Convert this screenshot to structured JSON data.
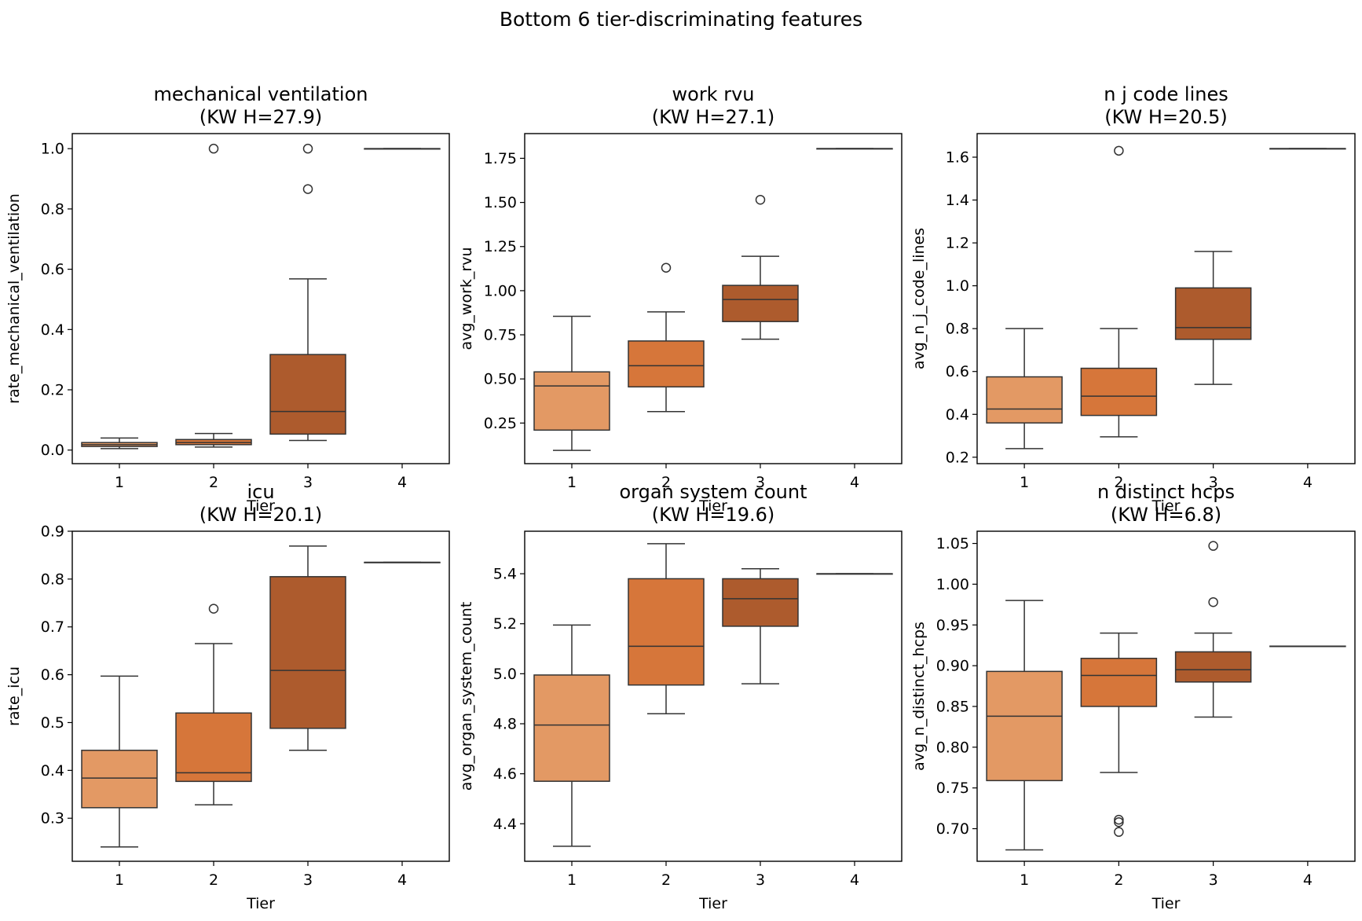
{
  "figure_title": "Bottom 6 tier-discriminating features",
  "colors": {
    "tiers": [
      "#e39964",
      "#d6763a",
      "#ad5b2d",
      "#8c4a22"
    ],
    "line": "#333333",
    "frame": "#000000"
  },
  "chart_data": [
    {
      "type": "box",
      "title": "mechanical ventilation",
      "subtitle": "(KW H=27.9)",
      "xlabel": "Tier",
      "ylabel": "rate_mechanical_ventilation",
      "categories": [
        "1",
        "2",
        "3",
        "4"
      ],
      "ylim": [
        -0.045,
        1.05
      ],
      "yticks": [
        0.0,
        0.2,
        0.4,
        0.6,
        0.8,
        1.0
      ],
      "ytick_labels": [
        "0.0",
        "0.2",
        "0.4",
        "0.6",
        "0.8",
        "1.0"
      ],
      "boxes": [
        {
          "tier": "1",
          "whislo": 0.005,
          "q1": 0.012,
          "med": 0.018,
          "q3": 0.025,
          "whishi": 0.04,
          "fliers": []
        },
        {
          "tier": "2",
          "whislo": 0.01,
          "q1": 0.018,
          "med": 0.025,
          "q3": 0.035,
          "whishi": 0.055,
          "fliers": [
            1.0
          ]
        },
        {
          "tier": "3",
          "whislo": 0.032,
          "q1": 0.053,
          "med": 0.128,
          "q3": 0.317,
          "whishi": 0.568,
          "fliers": [
            0.866,
            1.0
          ]
        },
        {
          "tier": "4",
          "whislo": 1.0,
          "q1": 1.0,
          "med": 1.0,
          "q3": 1.0,
          "whishi": 1.0,
          "fliers": []
        }
      ]
    },
    {
      "type": "box",
      "title": "work rvu",
      "subtitle": "(KW H=27.1)",
      "xlabel": "Tier",
      "ylabel": "avg_work_rvu",
      "categories": [
        "1",
        "2",
        "3",
        "4"
      ],
      "ylim": [
        0.02,
        1.89
      ],
      "yticks": [
        0.25,
        0.5,
        0.75,
        1.0,
        1.25,
        1.5,
        1.75
      ],
      "ytick_labels": [
        "0.25",
        "0.50",
        "0.75",
        "1.00",
        "1.25",
        "1.50",
        "1.75"
      ],
      "boxes": [
        {
          "tier": "1",
          "whislo": 0.095,
          "q1": 0.21,
          "med": 0.46,
          "q3": 0.54,
          "whishi": 0.855,
          "fliers": []
        },
        {
          "tier": "2",
          "whislo": 0.315,
          "q1": 0.455,
          "med": 0.575,
          "q3": 0.715,
          "whishi": 0.88,
          "fliers": [
            1.13
          ]
        },
        {
          "tier": "3",
          "whislo": 0.725,
          "q1": 0.825,
          "med": 0.95,
          "q3": 1.03,
          "whishi": 1.195,
          "fliers": [
            1.515
          ]
        },
        {
          "tier": "4",
          "whislo": 1.805,
          "q1": 1.805,
          "med": 1.805,
          "q3": 1.805,
          "whishi": 1.805,
          "fliers": []
        }
      ]
    },
    {
      "type": "box",
      "title": "n j code lines",
      "subtitle": "(KW H=20.5)",
      "xlabel": "Tier",
      "ylabel": "avg_n_j_code_lines",
      "categories": [
        "1",
        "2",
        "3",
        "4"
      ],
      "ylim": [
        0.17,
        1.71
      ],
      "yticks": [
        0.2,
        0.4,
        0.6,
        0.8,
        1.0,
        1.2,
        1.4,
        1.6
      ],
      "ytick_labels": [
        "0.2",
        "0.4",
        "0.6",
        "0.8",
        "1.0",
        "1.2",
        "1.4",
        "1.6"
      ],
      "boxes": [
        {
          "tier": "1",
          "whislo": 0.24,
          "q1": 0.36,
          "med": 0.425,
          "q3": 0.575,
          "whishi": 0.8,
          "fliers": []
        },
        {
          "tier": "2",
          "whislo": 0.295,
          "q1": 0.395,
          "med": 0.485,
          "q3": 0.615,
          "whishi": 0.8,
          "fliers": [
            1.63
          ]
        },
        {
          "tier": "3",
          "whislo": 0.54,
          "q1": 0.75,
          "med": 0.805,
          "q3": 0.99,
          "whishi": 1.16,
          "fliers": []
        },
        {
          "tier": "4",
          "whislo": 1.64,
          "q1": 1.64,
          "med": 1.64,
          "q3": 1.64,
          "whishi": 1.64,
          "fliers": []
        }
      ]
    },
    {
      "type": "box",
      "title": "icu",
      "subtitle": "(KW H=20.1)",
      "xlabel": "Tier",
      "ylabel": "rate_icu",
      "categories": [
        "1",
        "2",
        "3",
        "4"
      ],
      "ylim": [
        0.21,
        0.9
      ],
      "yticks": [
        0.3,
        0.4,
        0.5,
        0.6,
        0.7,
        0.8,
        0.9
      ],
      "ytick_labels": [
        "0.3",
        "0.4",
        "0.5",
        "0.6",
        "0.7",
        "0.8",
        "0.9"
      ],
      "boxes": [
        {
          "tier": "1",
          "whislo": 0.24,
          "q1": 0.322,
          "med": 0.384,
          "q3": 0.442,
          "whishi": 0.597,
          "fliers": []
        },
        {
          "tier": "2",
          "whislo": 0.328,
          "q1": 0.377,
          "med": 0.395,
          "q3": 0.52,
          "whishi": 0.665,
          "fliers": [
            0.738
          ]
        },
        {
          "tier": "3",
          "whislo": 0.442,
          "q1": 0.488,
          "med": 0.609,
          "q3": 0.805,
          "whishi": 0.869,
          "fliers": []
        },
        {
          "tier": "4",
          "whislo": 0.835,
          "q1": 0.835,
          "med": 0.835,
          "q3": 0.835,
          "whishi": 0.835,
          "fliers": []
        }
      ]
    },
    {
      "type": "box",
      "title": "organ system count",
      "subtitle": "(KW H=19.6)",
      "xlabel": "Tier",
      "ylabel": "avg_organ_system_count",
      "categories": [
        "1",
        "2",
        "3",
        "4"
      ],
      "ylim": [
        4.25,
        5.57
      ],
      "yticks": [
        4.4,
        4.6,
        4.8,
        5.0,
        5.2,
        5.4
      ],
      "ytick_labels": [
        "4.4",
        "4.6",
        "4.8",
        "5.0",
        "5.2",
        "5.4"
      ],
      "boxes": [
        {
          "tier": "1",
          "whislo": 4.31,
          "q1": 4.57,
          "med": 4.795,
          "q3": 4.995,
          "whishi": 5.195,
          "fliers": []
        },
        {
          "tier": "2",
          "whislo": 4.84,
          "q1": 4.955,
          "med": 5.11,
          "q3": 5.38,
          "whishi": 5.52,
          "fliers": []
        },
        {
          "tier": "3",
          "whislo": 4.96,
          "q1": 5.19,
          "med": 5.3,
          "q3": 5.38,
          "whishi": 5.42,
          "fliers": []
        },
        {
          "tier": "4",
          "whislo": 5.4,
          "q1": 5.4,
          "med": 5.4,
          "q3": 5.4,
          "whishi": 5.4,
          "fliers": []
        }
      ]
    },
    {
      "type": "box",
      "title": "n distinct hcps",
      "subtitle": "(KW H=6.8)",
      "xlabel": "Tier",
      "ylabel": "avg_n_distinct_hcps",
      "categories": [
        "1",
        "2",
        "3",
        "4"
      ],
      "ylim": [
        0.66,
        1.065
      ],
      "yticks": [
        0.7,
        0.75,
        0.8,
        0.85,
        0.9,
        0.95,
        1.0,
        1.05
      ],
      "ytick_labels": [
        "0.70",
        "0.75",
        "0.80",
        "0.85",
        "0.90",
        "0.95",
        "1.00",
        "1.05"
      ],
      "boxes": [
        {
          "tier": "1",
          "whislo": 0.674,
          "q1": 0.759,
          "med": 0.838,
          "q3": 0.893,
          "whishi": 0.98,
          "fliers": []
        },
        {
          "tier": "2",
          "whislo": 0.769,
          "q1": 0.85,
          "med": 0.888,
          "q3": 0.909,
          "whishi": 0.94,
          "fliers": [
            0.696,
            0.708,
            0.711
          ]
        },
        {
          "tier": "3",
          "whislo": 0.837,
          "q1": 0.88,
          "med": 0.895,
          "q3": 0.917,
          "whishi": 0.94,
          "fliers": [
            0.978,
            1.047
          ]
        },
        {
          "tier": "4",
          "whislo": 0.924,
          "q1": 0.924,
          "med": 0.924,
          "q3": 0.924,
          "whishi": 0.924,
          "fliers": []
        }
      ]
    }
  ]
}
